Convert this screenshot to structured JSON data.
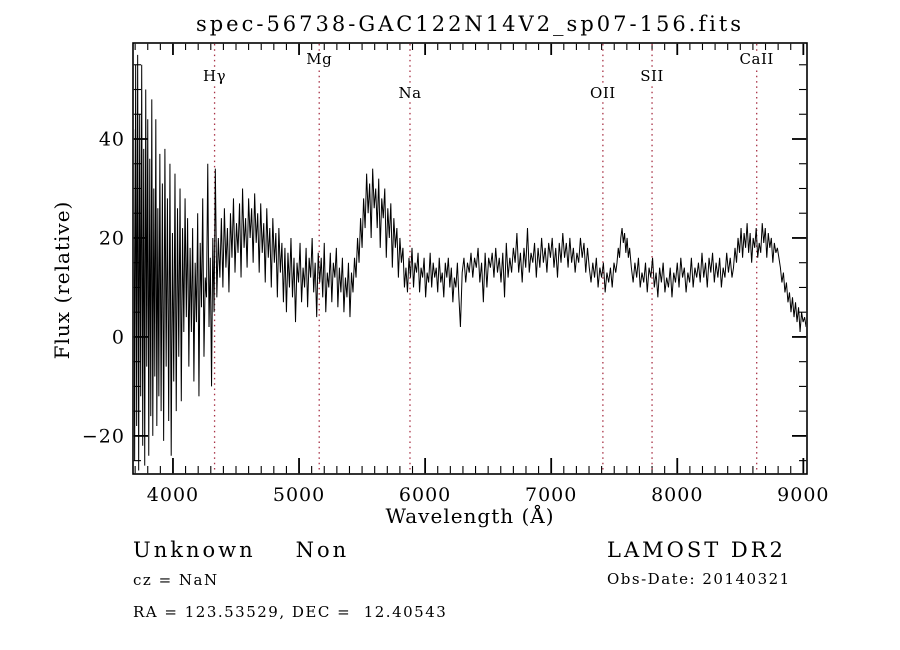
{
  "plot": {
    "title": "spec-56738-GAC122N14V2_sp07-156.fits",
    "xlabel": "Wavelength (Å)",
    "ylabel": "Flux (relative)"
  },
  "footer": {
    "class": "Unknown",
    "subclass": "Non",
    "cz": "cz = NaN",
    "radec": "RA = 123.53529, DEC =  12.40543",
    "survey": "LAMOST DR2",
    "obs_date": "Obs-Date: 20140321"
  },
  "chart_data": {
    "type": "line",
    "title": "spec-56738-GAC122N14V2_sp07-156.fits",
    "xlabel": "Wavelength (Å)",
    "ylabel": "Flux (relative)",
    "xlim": [
      3683,
      9029
    ],
    "ylim": [
      -27.7,
      59.4
    ],
    "x_major_ticks": [
      4000,
      5000,
      6000,
      7000,
      8000,
      9000
    ],
    "x_minor_step": 100,
    "y_major_ticks": [
      40,
      20,
      0,
      -20
    ],
    "y_minor_step": 5,
    "grid": false,
    "legend": "none",
    "line_color": "#000000",
    "marker_line_color": "#a83246",
    "spectral_lines": [
      {
        "label": "Hγ",
        "wavelength": 4330,
        "row": 1
      },
      {
        "label": "Mg",
        "wavelength": 5160,
        "row": 0
      },
      {
        "label": "Na",
        "wavelength": 5880,
        "row": 2
      },
      {
        "label": "OII",
        "wavelength": 7410,
        "row": 2
      },
      {
        "label": "SII",
        "wavelength": 7800,
        "row": 1
      },
      {
        "label": "CaII",
        "wavelength": 8630,
        "row": 0
      }
    ],
    "series": [
      {
        "name": "flux",
        "segments": [
          {
            "start": 3688,
            "step": 8,
            "values": [
              42,
              -25,
              55,
              -18,
              57,
              -27,
              45,
              -12,
              55,
              -22,
              38,
              -26,
              50,
              -6,
              44
            ]
          },
          {
            "start": 3808,
            "step": 8,
            "values": [
              -24,
              36,
              -16,
              48,
              -20,
              30,
              -8,
              44,
              -18,
              26,
              -12,
              37
            ]
          },
          {
            "start": 3906,
            "step": 10,
            "values": [
              -15,
              31,
              -21,
              38,
              -6,
              28,
              -17,
              35,
              -24,
              21,
              -9,
              33,
              -15,
              26,
              -4,
              30,
              -13,
              22,
              1,
              28
            ]
          },
          {
            "start": 4106,
            "step": 10,
            "values": [
              4,
              24,
              -6,
              18,
              1,
              22,
              -9,
              15,
              3,
              25,
              -12,
              19,
              6,
              28,
              -4,
              12,
              8,
              35,
              2,
              16,
              -10,
              20,
              5,
              34
            ]
          },
          {
            "start": 4348,
            "step": 12,
            "values": [
              8,
              20,
              12,
              24,
              10,
              26,
              14,
              22,
              9,
              25,
              16,
              28,
              13,
              23,
              17,
              27,
              12,
              30,
              18,
              24,
              14,
              28,
              20,
              26,
              15,
              29,
              19,
              25,
              13,
              27,
              17,
              23,
              11,
              26,
              16,
              22,
              10,
              24,
              15,
              21,
              8,
              22,
              13,
              19,
              7,
              18
            ]
          },
          {
            "start": 4900,
            "step": 12,
            "values": [
              5,
              17,
              10,
              20,
              8,
              16,
              3,
              15,
              11,
              19,
              7,
              14,
              10,
              18,
              6,
              16,
              12,
              20,
              9,
              15,
              4,
              17,
              11,
              16,
              8,
              19,
              5,
              13,
              10,
              17,
              7,
              15,
              12,
              18,
              6,
              14,
              9,
              16,
              5,
              12,
              8,
              15,
              4,
              13,
              9,
              16
            ]
          },
          {
            "start": 5452,
            "step": 12,
            "values": [
              12,
              20,
              15,
              24,
              18,
              28,
              22,
              33,
              25,
              31,
              20,
              34,
              26,
              30,
              22,
              32,
              18,
              28,
              24,
              30,
              16,
              26,
              20,
              27,
              14,
              24,
              18,
              22,
              12,
              20,
              15,
              18,
              10
            ]
          },
          {
            "start": 5848,
            "step": 12,
            "values": [
              14,
              9,
              16,
              12,
              18,
              10,
              15,
              13,
              17,
              9,
              14,
              12,
              16,
              8,
              13,
              11,
              17,
              10,
              15,
              12,
              14,
              9,
              16,
              11,
              13,
              8,
              15,
              12,
              16,
              10,
              14,
              7,
              12,
              10,
              15,
              8,
              2
            ]
          },
          {
            "start": 6294,
            "step": 14,
            "values": [
              13,
              16,
              11,
              15,
              13,
              17,
              12,
              16,
              14,
              18,
              11,
              15,
              7,
              17,
              10,
              16,
              14,
              17,
              12,
              18,
              13,
              16,
              11,
              17,
              8,
              19,
              12,
              16,
              13,
              18,
              15,
              21,
              13,
              17,
              11,
              18,
              14,
              22,
              13,
              17,
              15,
              19,
              12,
              18,
              14,
              20,
              15,
              18,
              13,
              19,
              16,
              20,
              14,
              18,
              12,
              19,
              15,
              21,
              16,
              19,
              14,
              20,
              15,
              18,
              13,
              17,
              15,
              20,
              16,
              19,
              13,
              18
            ]
          },
          {
            "start": 7302,
            "step": 14,
            "values": [
              14,
              11,
              15,
              12,
              16,
              10,
              14,
              12,
              15,
              9,
              13,
              11,
              14,
              10,
              15,
              13
            ]
          },
          {
            "start": 7522,
            "step": 10,
            "values": [
              15,
              18,
              16,
              20,
              22,
              19,
              21,
              17,
              20,
              16,
              18
            ]
          },
          {
            "start": 7636,
            "step": 14,
            "values": [
              14,
              11,
              15,
              12,
              16,
              10,
              13,
              11,
              15,
              9,
              14,
              12,
              16,
              10,
              13,
              8,
              14,
              11,
              15,
              9,
              12,
              10,
              14,
              8,
              13,
              11,
              15,
              10,
              16,
              12,
              14,
              9,
              13,
              11,
              16,
              10,
              14,
              12,
              15,
              11,
              17,
              12,
              15,
              10,
              16,
              13,
              17,
              11,
              15,
              12,
              16,
              10,
              14,
              12,
              17,
              13,
              16,
              12
            ]
          },
          {
            "start": 8446,
            "step": 12,
            "values": [
              14,
              18,
              15,
              20,
              17,
              22,
              16,
              21,
              18,
              23,
              17,
              21,
              15,
              20,
              18,
              22,
              16,
              19,
              17,
              23,
              19,
              22,
              16,
              21,
              18,
              20,
              15,
              19,
              17,
              18,
              16
            ]
          },
          {
            "start": 8818,
            "step": 12,
            "values": [
              14,
              11,
              13,
              9,
              11,
              7,
              9,
              5,
              8,
              4,
              7,
              3,
              6,
              1,
              5,
              3,
              4,
              2
            ]
          }
        ]
      }
    ]
  }
}
